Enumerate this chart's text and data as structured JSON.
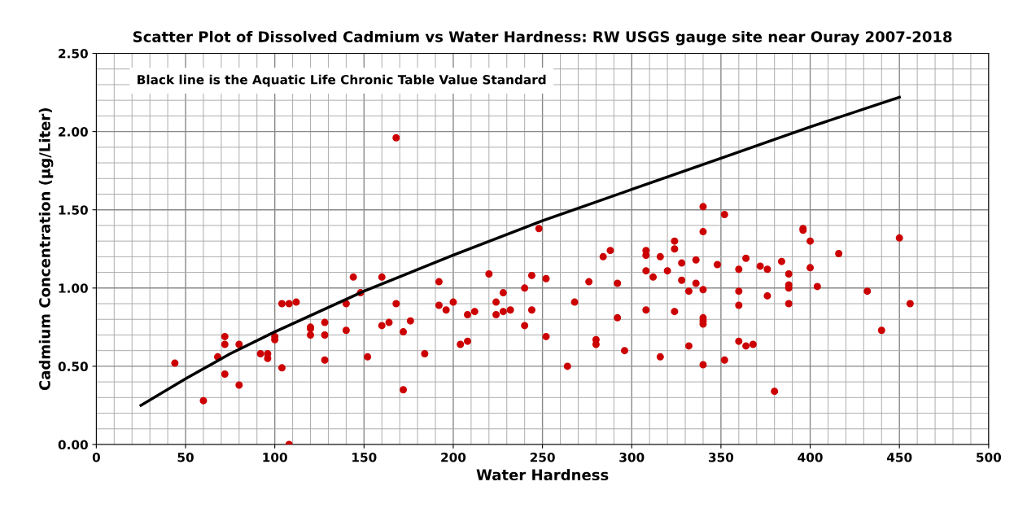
{
  "chart_data": {
    "type": "scatter",
    "title": "Scatter Plot of Dissolved Cadmium vs Water Hardness: RW USGS gauge site near Ouray 2007-2018",
    "xlabel": "Water Hardness",
    "ylabel": "Cadmium Concentration (µg/Liter)",
    "annotations": [
      "Black line is the Aquatic Life Chronic Table Value Standard"
    ],
    "xlim": [
      0,
      500
    ],
    "xticks": [
      0,
      50,
      100,
      150,
      200,
      250,
      300,
      350,
      400,
      450,
      500
    ],
    "ylim": [
      0,
      2.5
    ],
    "yticks": [
      {
        "value": 0,
        "label": "0.00"
      },
      {
        "value": 0.5,
        "label": "0.50"
      },
      {
        "value": 1.0,
        "label": "1.00"
      },
      {
        "value": 1.5,
        "label": "1.50"
      },
      {
        "value": 2.0,
        "label": "2.00"
      },
      {
        "value": 2.5,
        "label": "2.50"
      }
    ],
    "grid": true,
    "legend": false,
    "series": [
      {
        "color": "#cc0000",
        "marker": "circle",
        "x": [
          44,
          60,
          68,
          72,
          72,
          72,
          80,
          80,
          92,
          96,
          96,
          100,
          100,
          104,
          104,
          108,
          108,
          112,
          120,
          120,
          120,
          128,
          128,
          128,
          140,
          140,
          144,
          148,
          152,
          160,
          160,
          164,
          168,
          168,
          172,
          172,
          176,
          184,
          192,
          192,
          196,
          200,
          204,
          208,
          208,
          212,
          220,
          224,
          224,
          228,
          228,
          232,
          240,
          240,
          244,
          244,
          248,
          252,
          252,
          264,
          268,
          276,
          280,
          280,
          284,
          288,
          292,
          292,
          296,
          308,
          308,
          308,
          308,
          312,
          316,
          316,
          320,
          324,
          324,
          324,
          328,
          328,
          332,
          332,
          336,
          336,
          340,
          340,
          340,
          340,
          340,
          340,
          340,
          348,
          352,
          352,
          360,
          360,
          360,
          360,
          364,
          364,
          368,
          372,
          376,
          376,
          380,
          384,
          388,
          388,
          388,
          388,
          396,
          396,
          400,
          400,
          404,
          416,
          432,
          440,
          450,
          456
        ],
        "values": [
          0.52,
          0.28,
          0.56,
          0.69,
          0.64,
          0.45,
          0.64,
          0.38,
          0.58,
          0.58,
          0.55,
          0.69,
          0.67,
          0.49,
          0.9,
          0.9,
          0.0,
          0.91,
          0.75,
          0.74,
          0.7,
          0.78,
          0.7,
          0.54,
          0.9,
          0.73,
          1.07,
          0.97,
          0.56,
          1.07,
          0.76,
          0.78,
          1.96,
          0.9,
          0.72,
          0.35,
          0.79,
          0.58,
          1.04,
          0.89,
          0.86,
          0.91,
          0.64,
          0.83,
          0.66,
          0.85,
          1.09,
          0.91,
          0.83,
          0.97,
          0.85,
          0.86,
          1.0,
          0.76,
          1.08,
          0.86,
          1.38,
          1.06,
          0.69,
          0.5,
          0.91,
          1.04,
          0.67,
          0.64,
          1.2,
          1.24,
          1.03,
          0.81,
          0.6,
          1.24,
          1.21,
          1.11,
          0.86,
          1.07,
          1.2,
          0.56,
          1.11,
          1.3,
          1.25,
          0.85,
          1.16,
          1.05,
          0.98,
          0.63,
          1.18,
          1.03,
          1.52,
          1.36,
          0.99,
          0.81,
          0.79,
          0.77,
          0.51,
          1.15,
          1.47,
          0.54,
          1.12,
          0.98,
          0.89,
          0.66,
          1.19,
          0.63,
          0.64,
          1.14,
          1.12,
          0.95,
          0.34,
          1.17,
          1.09,
          1.02,
          1.0,
          0.9,
          1.38,
          1.37,
          1.3,
          1.13,
          1.01,
          1.22,
          0.98,
          0.73,
          1.32,
          0.9
        ]
      },
      {
        "type": "line",
        "color": "#000000",
        "marker": "none",
        "line_style": "solid",
        "x": [
          25,
          50,
          75,
          100,
          125,
          150,
          200,
          250,
          300,
          350,
          400,
          450
        ],
        "values": [
          0.25,
          0.42,
          0.58,
          0.72,
          0.85,
          0.98,
          1.21,
          1.43,
          1.63,
          1.83,
          2.03,
          2.22
        ]
      }
    ]
  }
}
